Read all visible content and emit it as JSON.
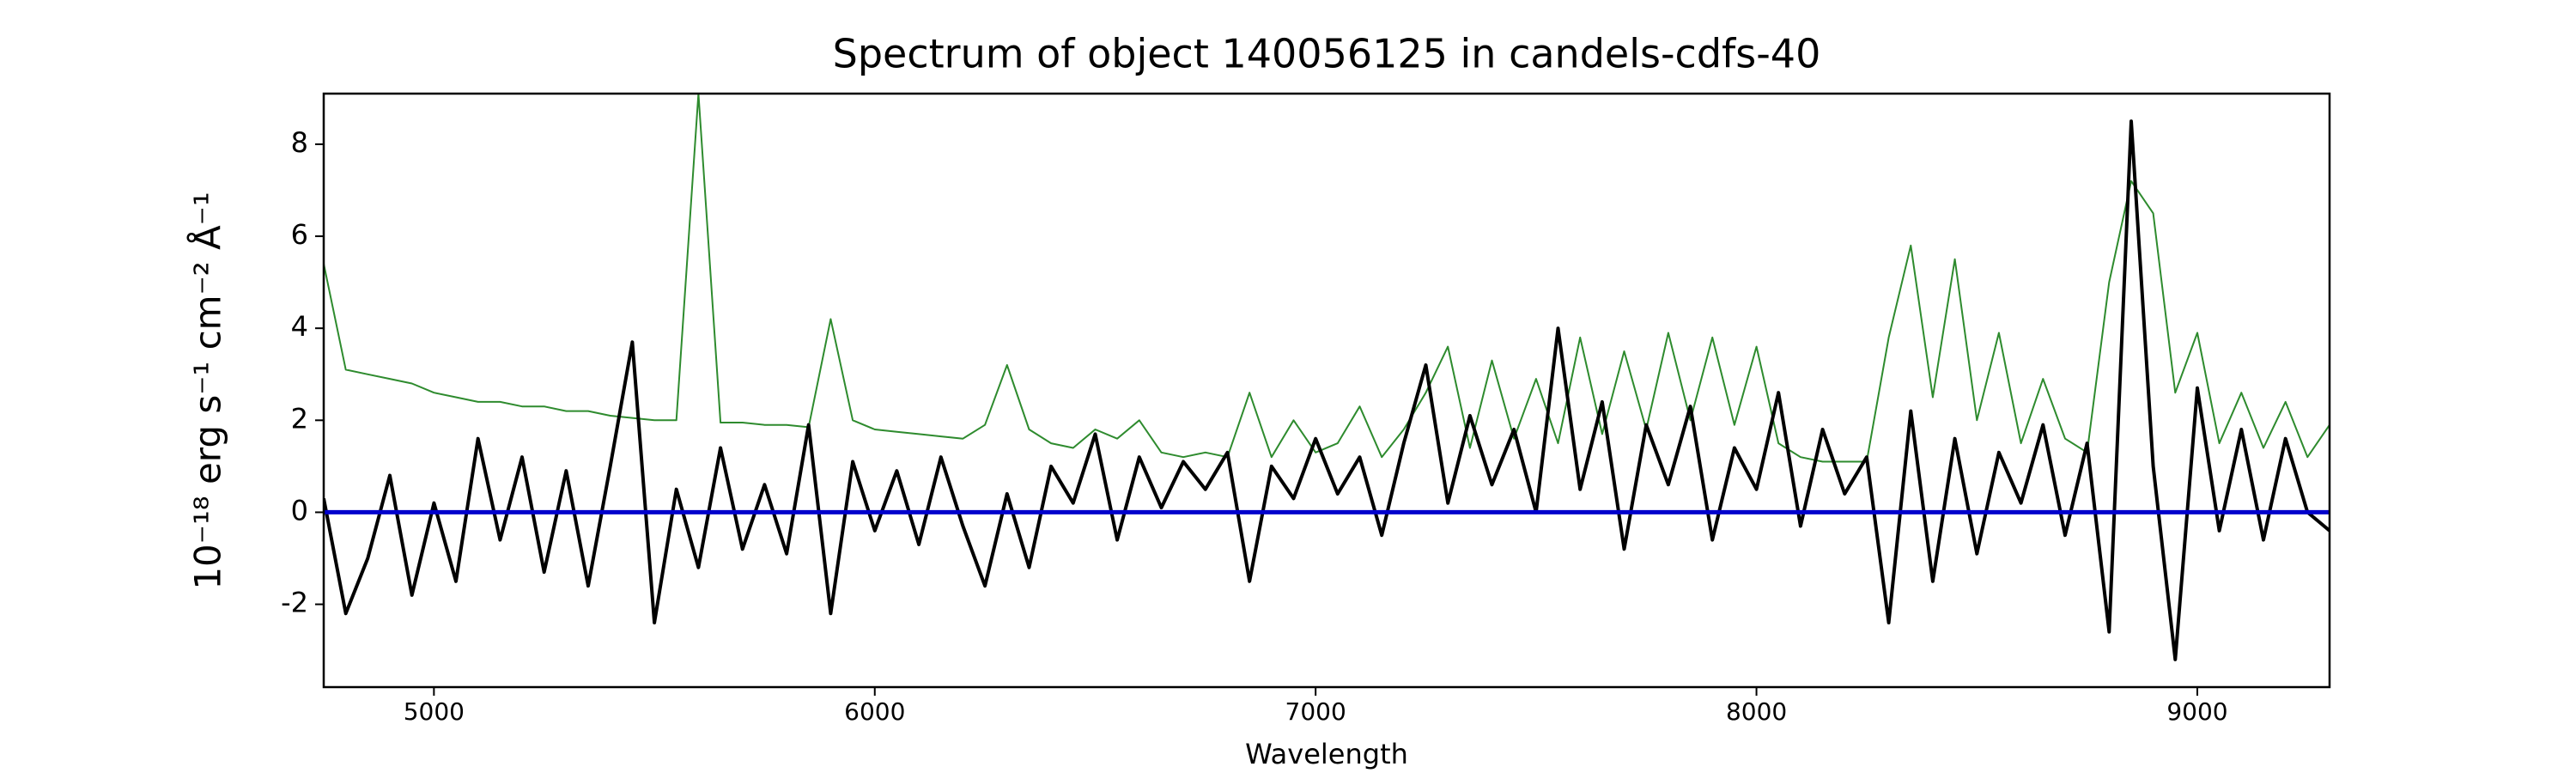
{
  "chart_data": {
    "type": "line",
    "title": "Spectrum of object 140056125 in candels-cdfs-40",
    "xlabel": "Wavelength",
    "ylabel": "10⁻¹⁸ erg s⁻¹ cm⁻² Å⁻¹",
    "x": [
      4750,
      4800,
      4850,
      4900,
      4950,
      5000,
      5050,
      5100,
      5150,
      5200,
      5250,
      5300,
      5350,
      5400,
      5450,
      5500,
      5550,
      5600,
      5650,
      5700,
      5750,
      5800,
      5850,
      5900,
      5950,
      6000,
      6050,
      6100,
      6150,
      6200,
      6250,
      6300,
      6350,
      6400,
      6450,
      6500,
      6550,
      6600,
      6650,
      6700,
      6750,
      6800,
      6850,
      6900,
      6950,
      7000,
      7050,
      7100,
      7150,
      7200,
      7250,
      7300,
      7350,
      7400,
      7450,
      7500,
      7550,
      7600,
      7650,
      7700,
      7750,
      7800,
      7850,
      7900,
      7950,
      8000,
      8050,
      8100,
      8150,
      8200,
      8250,
      8300,
      8350,
      8400,
      8450,
      8500,
      8550,
      8600,
      8650,
      8700,
      8750,
      8800,
      8850,
      8900,
      8950,
      9000,
      9050,
      9100,
      9150,
      9200,
      9250,
      9300
    ],
    "series": [
      {
        "color": "#2e8b2e",
        "width": 2,
        "values": [
          5.4,
          3.1,
          3.0,
          2.9,
          2.8,
          2.6,
          2.5,
          2.4,
          2.4,
          2.3,
          2.3,
          2.2,
          2.2,
          2.1,
          2.05,
          2.0,
          2.0,
          9.1,
          1.95,
          1.95,
          1.9,
          1.9,
          1.85,
          4.2,
          2.0,
          1.8,
          1.75,
          1.7,
          1.65,
          1.6,
          1.9,
          3.2,
          1.8,
          1.5,
          1.4,
          1.8,
          1.6,
          2.0,
          1.3,
          1.2,
          1.3,
          1.2,
          2.6,
          1.2,
          2.0,
          1.3,
          1.5,
          2.3,
          1.2,
          1.8,
          2.6,
          3.6,
          1.4,
          3.3,
          1.6,
          2.9,
          1.5,
          3.8,
          1.7,
          3.5,
          1.8,
          3.9,
          2.0,
          3.8,
          1.9,
          3.6,
          1.5,
          1.2,
          1.1,
          1.1,
          1.1,
          3.8,
          5.8,
          2.5,
          5.5,
          2.0,
          3.9,
          1.5,
          2.9,
          1.6,
          1.3,
          5.0,
          7.2,
          6.5,
          2.6,
          3.9,
          1.5,
          2.6,
          1.4,
          2.4,
          1.2,
          1.9
        ]
      },
      {
        "color": "#000000",
        "width": 4,
        "values": [
          0.3,
          -2.2,
          -1.0,
          0.8,
          -1.8,
          0.2,
          -1.5,
          1.6,
          -0.6,
          1.2,
          -1.3,
          0.9,
          -1.6,
          1.0,
          3.7,
          -2.4,
          0.5,
          -1.2,
          1.4,
          -0.8,
          0.6,
          -0.9,
          1.9,
          -2.2,
          1.1,
          -0.4,
          0.9,
          -0.7,
          1.2,
          -0.3,
          -1.6,
          0.4,
          -1.2,
          1.0,
          0.2,
          1.7,
          -0.6,
          1.2,
          0.1,
          1.1,
          0.5,
          1.3,
          -1.5,
          1.0,
          0.3,
          1.6,
          0.4,
          1.2,
          -0.5,
          1.5,
          3.2,
          0.2,
          2.1,
          0.6,
          1.8,
          0.0,
          4.0,
          0.5,
          2.4,
          -0.8,
          1.9,
          0.6,
          2.3,
          -0.6,
          1.4,
          0.5,
          2.6,
          -0.3,
          1.8,
          0.4,
          1.2,
          -2.4,
          2.2,
          -1.5,
          1.6,
          -0.9,
          1.3,
          0.2,
          1.9,
          -0.5,
          1.5,
          -2.6,
          8.5,
          1.0,
          -3.2,
          2.7,
          -0.4,
          1.8,
          -0.6,
          1.6,
          0.0,
          -0.4
        ]
      },
      {
        "color": "#0000cc",
        "width": 5,
        "x": [
          4750,
          9300
        ],
        "values": [
          0,
          0
        ]
      }
    ],
    "xlim": [
      4750,
      9300
    ],
    "ylim": [
      -3.8,
      9.1
    ],
    "xticks": [
      5000,
      6000,
      7000,
      8000,
      9000
    ],
    "yticks": [
      -2,
      0,
      2,
      4,
      6,
      8
    ]
  }
}
